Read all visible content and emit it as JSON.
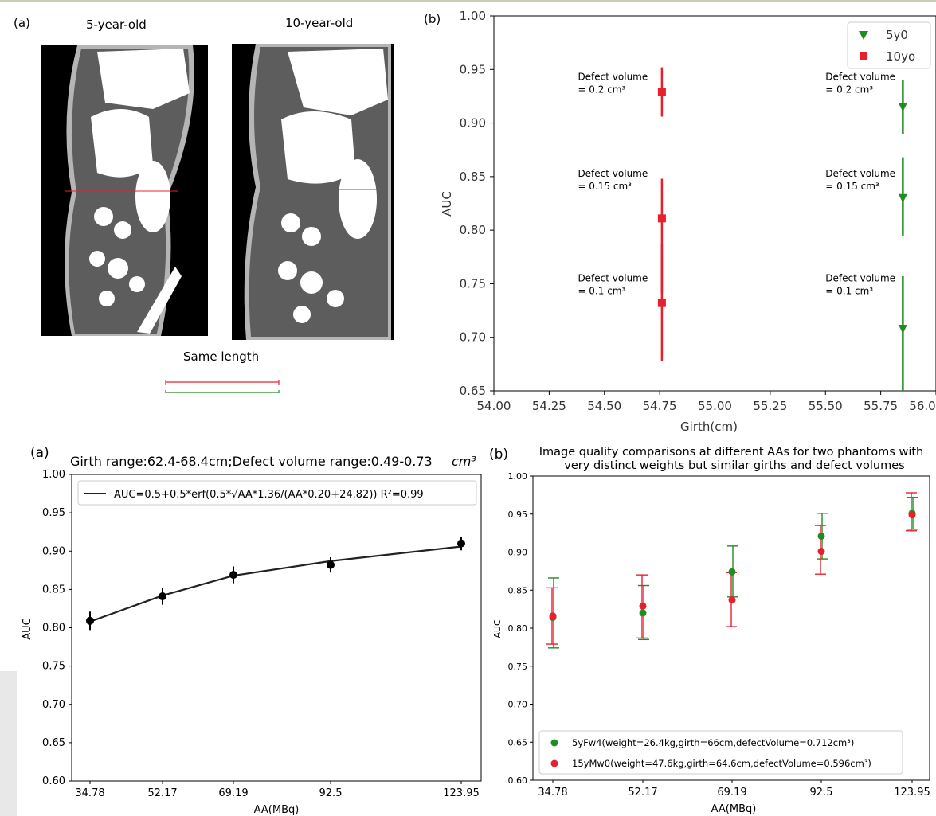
{
  "colors": {
    "red": "#e8202e",
    "green": "#238b23",
    "black": "#000000",
    "darkline": "#222222"
  },
  "phantom_panel": {
    "panel_label": "(a)",
    "left_title": "5-year-old",
    "right_title": "10-year-old",
    "same_length_label": "Same length"
  },
  "charts": [
    {
      "panel_label": "(b)",
      "chart_data": {
        "type": "scatter",
        "title": "",
        "xlabel": "Girth(cm)",
        "ylabel": "AUC",
        "xlim": [
          54.0,
          56.0
        ],
        "ylim": [
          0.65,
          1.0
        ],
        "x_ticks": [
          "54.00",
          "54.25",
          "54.50",
          "54.75",
          "55.00",
          "55.25",
          "55.50",
          "55.75",
          "56.0"
        ],
        "y_ticks": [
          "0.65",
          "0.70",
          "0.75",
          "0.80",
          "0.85",
          "0.90",
          "0.95",
          "1.00"
        ],
        "grid": false,
        "legend_position": "top-right",
        "series": [
          {
            "name": "5y0",
            "color": "#238b23",
            "marker": "triangle-down",
            "points": [
              {
                "x": 55.85,
                "y": 0.915,
                "err_low": 0.89,
                "err_high": 0.94
              },
              {
                "x": 55.85,
                "y": 0.83,
                "err_low": 0.795,
                "err_high": 0.868
              },
              {
                "x": 55.85,
                "y": 0.708,
                "err_low": 0.65,
                "err_high": 0.757
              }
            ]
          },
          {
            "name": "10yo",
            "color": "#e8202e",
            "marker": "square",
            "points": [
              {
                "x": 54.76,
                "y": 0.929,
                "err_low": 0.906,
                "err_high": 0.952
              },
              {
                "x": 54.76,
                "y": 0.811,
                "err_low": 0.741,
                "err_high": 0.848
              },
              {
                "x": 54.76,
                "y": 0.732,
                "err_low": 0.678,
                "err_high": 0.787
              }
            ]
          }
        ],
        "annotations": [
          {
            "x": 54.38,
            "y": 0.94,
            "line1": "Defect volume",
            "line2": "= 0.2 cm³"
          },
          {
            "x": 54.38,
            "y": 0.85,
            "line1": "Defect volume",
            "line2": "= 0.15 cm³"
          },
          {
            "x": 54.38,
            "y": 0.752,
            "line1": "Defect volume",
            "line2": "= 0.1 cm³"
          },
          {
            "x": 55.5,
            "y": 0.94,
            "line1": "Defect volume",
            "line2": "= 0.2 cm³"
          },
          {
            "x": 55.5,
            "y": 0.85,
            "line1": "Defect volume",
            "line2": "= 0.15 cm³"
          },
          {
            "x": 55.5,
            "y": 0.752,
            "line1": "Defect volume",
            "line2": "= 0.1 cm³"
          }
        ]
      }
    },
    {
      "panel_label": "(a)",
      "chart_data": {
        "type": "line",
        "title": "Girth range:62.4-68.4cm;Defect volume range:0.49-0.73",
        "title_suffix": "cm³",
        "xlabel": "AA(MBq)",
        "ylabel": "AUC",
        "categories": [
          "34.78",
          "52.17",
          "69.19",
          "92.5",
          "123.95"
        ],
        "ylim": [
          0.6,
          1.0
        ],
        "y_ticks": [
          "0.60",
          "0.65",
          "0.70",
          "0.75",
          "0.80",
          "0.85",
          "0.90",
          "0.95",
          "1.00"
        ],
        "grid": false,
        "legend_position": "top-left",
        "legend_text": "AUC=0.5+0.5*erf(0.5*√AA*1.36/(AA*0.20+24.82))  R²=0.99",
        "fit_line": {
          "name": "AUC fit",
          "values": [
            0.808,
            0.842,
            0.868,
            0.887,
            0.906
          ]
        },
        "series": [
          {
            "name": "",
            "values": [
              0.809,
              0.841,
              0.869,
              0.882,
              0.91
            ],
            "err": [
              0.012,
              0.011,
              0.011,
              0.01,
              0.009
            ]
          }
        ]
      }
    },
    {
      "panel_label": "(b)",
      "chart_data": {
        "type": "scatter",
        "title": "Image quality comparisons at different AAs for two phantoms with",
        "title_line2": "very distinct weights but similar girths and defect volumes",
        "xlabel": "AA(MBq)",
        "ylabel": "AUC",
        "categories": [
          "34.78",
          "52.17",
          "69.19",
          "92.5",
          "123.95"
        ],
        "ylim": [
          0.6,
          1.0
        ],
        "y_ticks": [
          "0.60",
          "0.65",
          "0.70",
          "0.75",
          "0.80",
          "0.85",
          "0.90",
          "0.95",
          "1.00"
        ],
        "grid": false,
        "legend_position": "bottom-left",
        "series": [
          {
            "name": "5yFw4(weight=26.4kg,girth=66cm,defectVolume=0.712cm³)",
            "color": "#238b23",
            "values": [
              0.814,
              0.82,
              0.874,
              0.921,
              0.951
            ],
            "err_low": [
              0.774,
              0.785,
              0.841,
              0.891,
              0.93
            ],
            "err_high": [
              0.866,
              0.856,
              0.908,
              0.951,
              0.972
            ]
          },
          {
            "name": "15yMw0(weight=47.6kg,girth=64.6cm,defectVolume=0.596cm³)",
            "color": "#e8202e",
            "values": [
              0.816,
              0.829,
              0.837,
              0.901,
              0.949
            ],
            "err_low": [
              0.779,
              0.787,
              0.802,
              0.871,
              0.928
            ],
            "err_high": [
              0.853,
              0.87,
              0.873,
              0.935,
              0.978
            ]
          }
        ]
      }
    }
  ]
}
